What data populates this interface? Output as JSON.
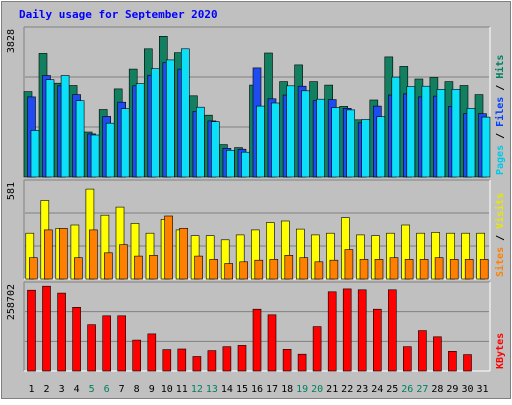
{
  "chart_data": {
    "type": "bar",
    "title": "Daily usage for September 2020",
    "categories": [
      "1",
      "2",
      "3",
      "4",
      "5",
      "6",
      "7",
      "8",
      "9",
      "10",
      "11",
      "12",
      "13",
      "14",
      "15",
      "16",
      "17",
      "18",
      "19",
      "20",
      "21",
      "22",
      "23",
      "24",
      "25",
      "26",
      "27",
      "28",
      "29",
      "30",
      "31"
    ],
    "weekend_days": [
      "5",
      "6",
      "12",
      "13",
      "19",
      "20",
      "26",
      "27"
    ],
    "panels": [
      {
        "id": "pages-files-hits",
        "scale_label": "3828",
        "ymax": 3828,
        "legend": [
          {
            "text": "Pages",
            "color": "#00c8e8"
          },
          {
            "text": " / ",
            "color": "#000000"
          },
          {
            "text": "Files",
            "color": "#0040ff"
          },
          {
            "text": " / ",
            "color": "#000000"
          },
          {
            "text": "Hits",
            "color": "#008060"
          }
        ],
        "series": [
          {
            "name": "Hits",
            "color": "#128060",
            "values": [
              2240,
              3240,
              2460,
              2400,
              1180,
              1770,
              2310,
              2830,
              3360,
              3690,
              3260,
              2130,
              1620,
              850,
              770,
              2410,
              3250,
              2500,
              2940,
              2500,
              2410,
              1850,
              1500,
              2020,
              3150,
              2900,
              2570,
              2610,
              2500,
              2400,
              2160
            ]
          },
          {
            "name": "Files",
            "color": "#1e4cf0",
            "values": [
              2100,
              2660,
              2390,
              2160,
              1130,
              1590,
              1960,
              2390,
              2670,
              3000,
              2830,
              1720,
              1470,
              750,
              730,
              2860,
              2050,
              2150,
              2380,
              2000,
              2030,
              1800,
              1420,
              1860,
              2150,
              2180,
              2100,
              2120,
              1850,
              1660,
              1660
            ]
          },
          {
            "name": "Pages",
            "color": "#0ce0f8",
            "values": [
              1220,
              2550,
              2660,
              2000,
              1100,
              1410,
              1790,
              2450,
              2840,
              3070,
              3360,
              1830,
              1450,
              700,
              650,
              1860,
              1940,
              2390,
              2260,
              2040,
              1820,
              1760,
              1510,
              1580,
              2620,
              2370,
              2380,
              2300,
              2300,
              1800,
              1570
            ]
          }
        ]
      },
      {
        "id": "sites-visits",
        "scale_label": "581",
        "ymax": 581,
        "legend": [
          {
            "text": "Sites",
            "color": "#ff8000"
          },
          {
            "text": " / ",
            "color": "#000000"
          },
          {
            "text": "Visits",
            "color": "#e8e800"
          }
        ],
        "series": [
          {
            "name": "Visits",
            "color": "#ffff00",
            "values": [
              280,
              480,
              310,
              330,
              550,
              390,
              440,
              340,
              280,
              365,
              300,
              265,
              265,
              240,
              270,
              300,
              345,
              355,
              305,
              270,
              280,
              375,
              270,
              265,
              280,
              330,
              280,
              285,
              280,
              280,
              280
            ]
          },
          {
            "name": "Sites",
            "color": "#ff8000",
            "values": [
              130,
              300,
              310,
              130,
              300,
              160,
              210,
              140,
              145,
              385,
              310,
              140,
              120,
              95,
              105,
              115,
              120,
              145,
              130,
              105,
              115,
              180,
              120,
              120,
              130,
              120,
              120,
              130,
              120,
              120,
              120
            ]
          }
        ]
      },
      {
        "id": "kbytes",
        "scale_label": "258702",
        "ymax": 258702,
        "legend": [
          {
            "text": "KBytes",
            "color": "#ff0000"
          }
        ],
        "series": [
          {
            "name": "KBytes",
            "color": "#ff0000",
            "values": [
              246000,
              258000,
              237000,
              194000,
              141000,
              168000,
              168000,
              94000,
              113000,
              65000,
              67000,
              44000,
              62000,
              74000,
              78000,
              188000,
              171000,
              66000,
              51000,
              135000,
              241000,
              250000,
              247000,
              188000,
              247000,
              74000,
              123000,
              104000,
              60000,
              50000,
              0
            ]
          }
        ]
      }
    ]
  }
}
